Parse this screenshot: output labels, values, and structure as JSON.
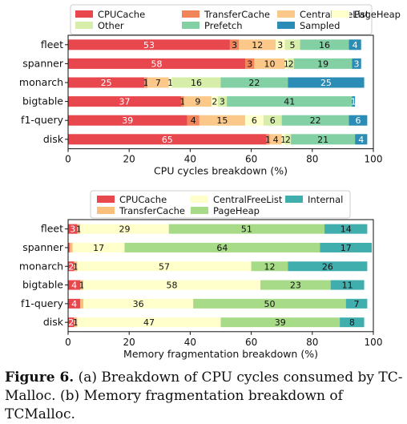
{
  "caption": {
    "label": "Figure 6.",
    "text": "(a) Breakdown of CPU cycles consumed by TC-Malloc. (b) Memory fragmentation breakdown of TCMalloc."
  },
  "chart_data": [
    {
      "type": "bar",
      "orientation": "horizontal",
      "stacked": true,
      "xlabel": "CPU cycles breakdown (%)",
      "xlim": [
        0,
        100
      ],
      "xticks": [
        "0",
        "20",
        "40",
        "60",
        "80",
        "100"
      ],
      "legend_position": "top",
      "categories": [
        "fleet",
        "spanner",
        "monarch",
        "bigtable",
        "f1-query",
        "disk"
      ],
      "series": [
        {
          "name": "CPUCache",
          "color": "#e8474e",
          "values": [
            53,
            58,
            25,
            37,
            39,
            65
          ]
        },
        {
          "name": "TransferCache",
          "color": "#f2845a",
          "values": [
            3,
            3,
            1,
            1,
            4,
            1
          ]
        },
        {
          "name": "CentralFreeList",
          "color": "#fbc88a",
          "values": [
            12,
            10,
            7,
            9,
            15,
            4
          ]
        },
        {
          "name": "PageHeap",
          "color": "#ffffcc",
          "values": [
            3,
            1,
            1,
            2,
            6,
            1
          ]
        },
        {
          "name": "Other",
          "color": "#d7eeaa",
          "values": [
            5,
            2,
            16,
            3,
            6,
            2
          ]
        },
        {
          "name": "Prefetch",
          "color": "#82d0a4",
          "values": [
            16,
            19,
            22,
            41,
            22,
            21
          ]
        },
        {
          "name": "Sampled",
          "color": "#2b8cb5",
          "values": [
            4,
            3,
            25,
            1,
            6,
            4
          ]
        }
      ],
      "data_labels": [
        [
          "53",
          "3",
          "12",
          "3",
          "5",
          "16",
          "4"
        ],
        [
          "58",
          "3",
          "10",
          "1",
          "2",
          "19",
          "3"
        ],
        [
          "25",
          "1",
          "7",
          "1",
          "16",
          "22",
          "25"
        ],
        [
          "37",
          "1",
          "9",
          "2",
          "3",
          "41",
          "1"
        ],
        [
          "39",
          "4",
          "15",
          "6",
          "6",
          "22",
          "6"
        ],
        [
          "65",
          "1",
          "4",
          "1",
          "2",
          "21",
          "4"
        ]
      ]
    },
    {
      "type": "bar",
      "orientation": "horizontal",
      "stacked": true,
      "xlabel": "Memory fragmentation breakdown (%)",
      "xlim": [
        0,
        100
      ],
      "xticks": [
        "0",
        "20",
        "40",
        "60",
        "80",
        "100"
      ],
      "legend_position": "top",
      "categories": [
        "fleet",
        "spanner",
        "monarch",
        "bigtable",
        "f1-query",
        "disk"
      ],
      "series": [
        {
          "name": "CPUCache",
          "color": "#e8474e",
          "values": [
            3,
            0.5,
            2,
            4,
            4,
            2
          ]
        },
        {
          "name": "TransferCache",
          "color": "#fbbf7c",
          "values": [
            1,
            1,
            1,
            1,
            1,
            1
          ]
        },
        {
          "name": "CentralFreeList",
          "color": "#ffffcc",
          "values": [
            29,
            17,
            57,
            58,
            36,
            47
          ]
        },
        {
          "name": "PageHeap",
          "color": "#a8db87",
          "values": [
            51,
            64,
            12,
            23,
            50,
            39
          ]
        },
        {
          "name": "Internal",
          "color": "#41aeae",
          "values": [
            14,
            17,
            26,
            11,
            7,
            8
          ]
        }
      ],
      "data_labels": [
        [
          "3",
          "1",
          "29",
          "51",
          "14"
        ],
        [
          "",
          "",
          "17",
          "64",
          "17"
        ],
        [
          "2",
          "1",
          "57",
          "12",
          "26"
        ],
        [
          "4",
          "1",
          "58",
          "23",
          "11"
        ],
        [
          "4",
          "",
          "36",
          "50",
          "7"
        ],
        [
          "2",
          "1",
          "47",
          "39",
          "8"
        ]
      ]
    }
  ]
}
